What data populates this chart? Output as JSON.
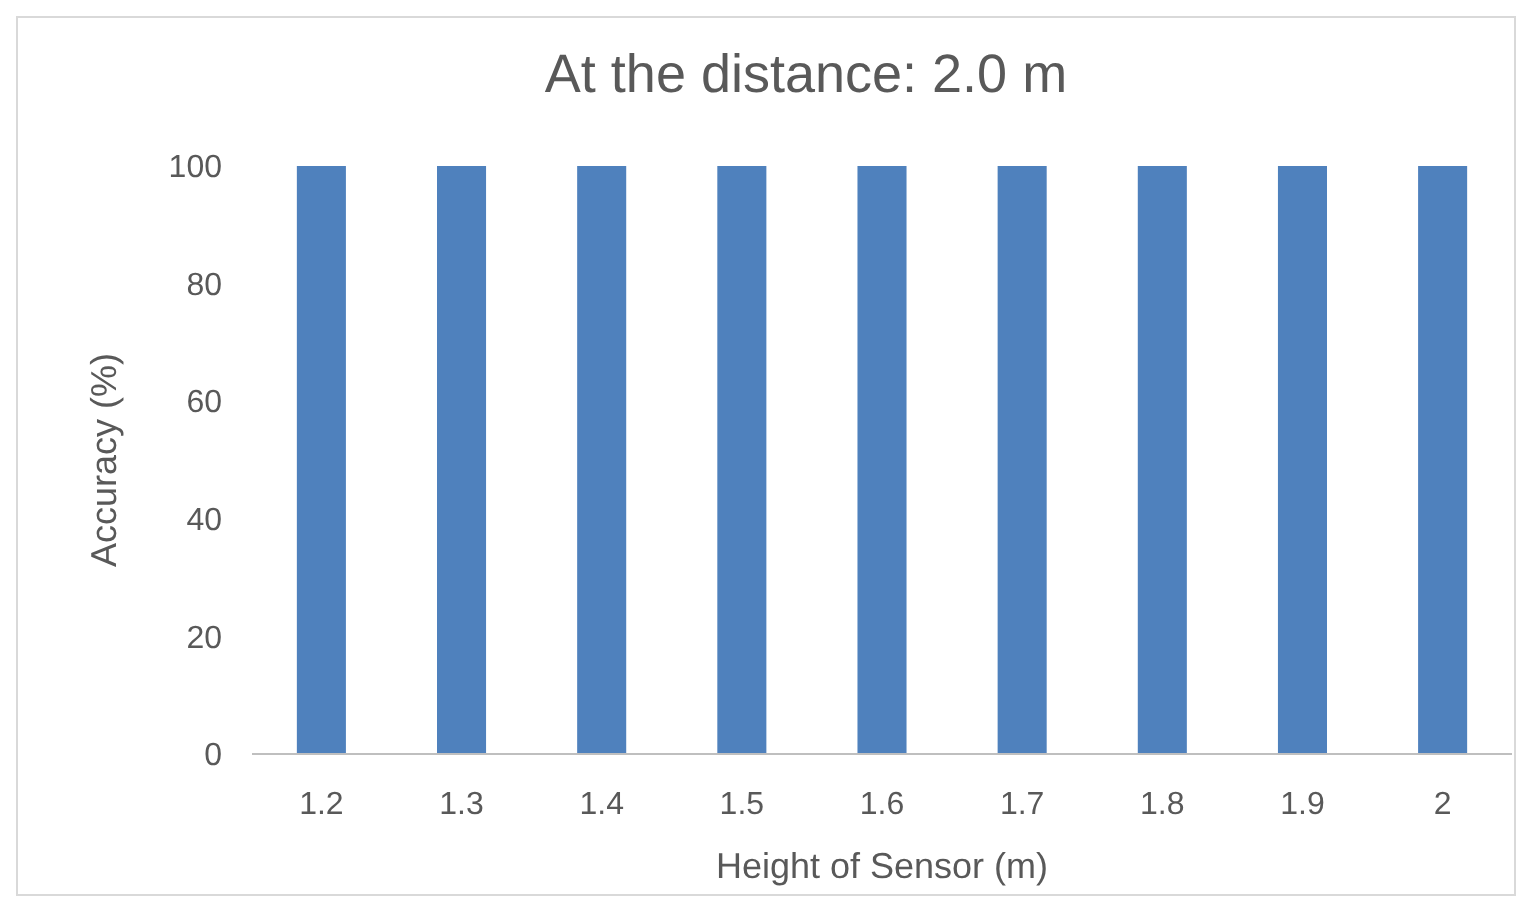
{
  "chart_data": {
    "type": "bar",
    "title": "At the distance: 2.0 m",
    "xlabel": "Height of Sensor (m)",
    "ylabel": "Accuracy (%)",
    "categories": [
      "1.2",
      "1.3",
      "1.4",
      "1.5",
      "1.6",
      "1.7",
      "1.8",
      "1.9",
      "2"
    ],
    "values": [
      100,
      100,
      100,
      100,
      100,
      100,
      100,
      100,
      100
    ],
    "color": "#4f81bd",
    "ylim": [
      0,
      100
    ],
    "yticks": [
      0,
      20,
      40,
      60,
      80,
      100
    ],
    "grid": false
  }
}
